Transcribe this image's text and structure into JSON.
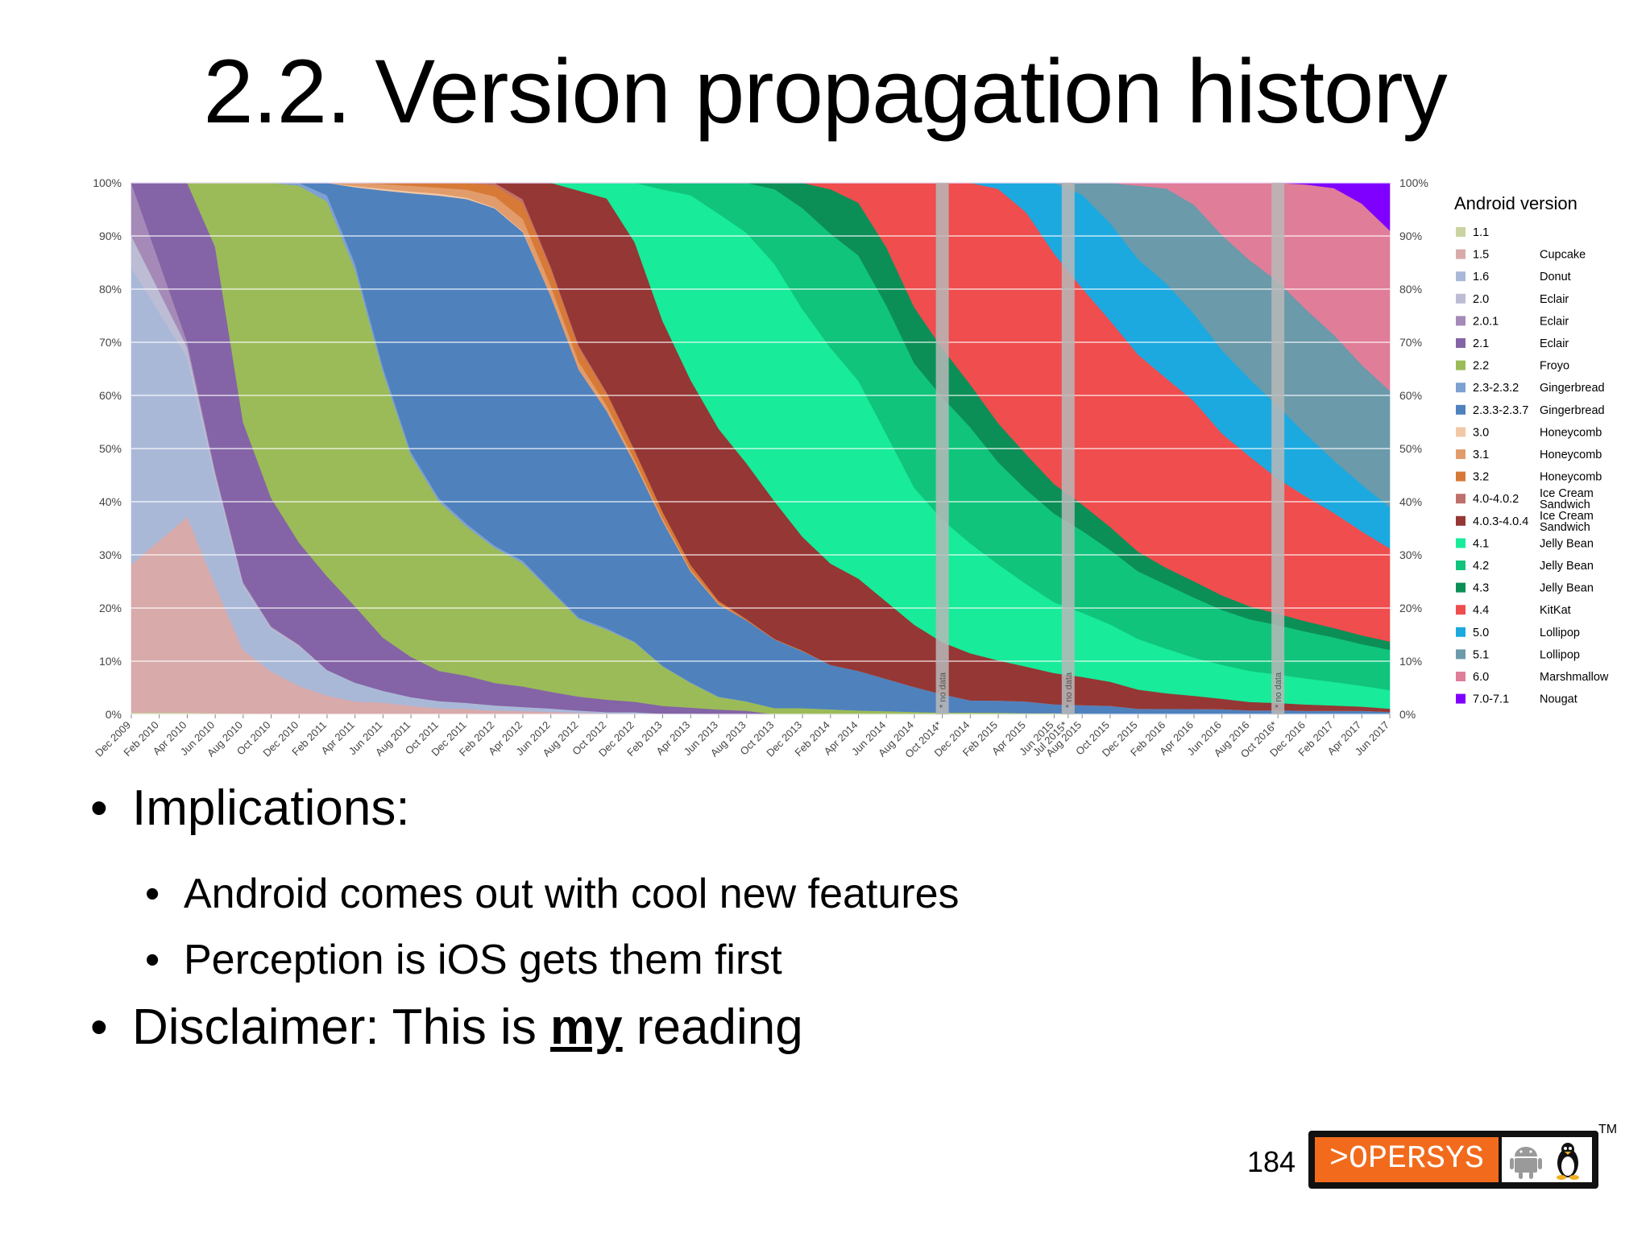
{
  "slide": {
    "title": "2.2. Version propagation history",
    "bullets": [
      {
        "level": 1,
        "text": "Implications:"
      },
      {
        "level": 2,
        "text": "Android comes out with cool new features"
      },
      {
        "level": 2,
        "text": "Perception is iOS gets them first"
      }
    ],
    "disclaimer": {
      "prefix": "Disclaimer: This is ",
      "emphasis": "my",
      "suffix": " reading"
    },
    "page_number": "184",
    "logo": {
      "text": ">OPERSYS",
      "tm": "TM",
      "icons": [
        "android-robot-icon",
        "tux-penguin-icon"
      ],
      "accent_color": "#f26b1d"
    }
  },
  "chart_data": {
    "type": "area",
    "stacked": true,
    "percent": true,
    "legend_title": "Android version",
    "legend_position": "right",
    "grid": true,
    "ylim": [
      0,
      100
    ],
    "y_ticks": [
      "0%",
      "10%",
      "20%",
      "30%",
      "40%",
      "50%",
      "60%",
      "70%",
      "80%",
      "90%",
      "100%"
    ],
    "x_ticks": [
      "Dec 2009",
      "Feb 2010",
      "Apr 2010",
      "Jun 2010",
      "Aug 2010",
      "Oct 2010",
      "Dec 2010",
      "Feb 2011",
      "Apr 2011",
      "Jun 2011",
      "Aug 2011",
      "Oct 2011",
      "Dec 2011",
      "Feb 2012",
      "Apr 2012",
      "Jun 2012",
      "Aug 2012",
      "Oct 2012",
      "Dec 2012",
      "Feb 2013",
      "Apr 2013",
      "Jun 2013",
      "Aug 2013",
      "Oct 2013",
      "Dec 2013",
      "Feb 2014",
      "Apr 2014",
      "Jun 2014",
      "Aug 2014",
      "Oct 2014*",
      "Dec 2014",
      "Feb 2015",
      "Apr 2015",
      "Jun 2015",
      "Jul 2015*",
      "Aug 2015",
      "Oct 2015",
      "Dec 2015",
      "Feb 2016",
      "Apr 2016",
      "Jun 2016",
      "Aug 2016",
      "Oct 2016*",
      "Dec 2016",
      "Feb 2017",
      "Apr 2017",
      "Jun 2017"
    ],
    "no_data_label": "* no data",
    "no_data_at": [
      "Oct 2014*",
      "Jul 2015*",
      "Oct 2016*"
    ],
    "x": [
      "Dec 2009",
      "Apr 2010",
      "Jun 2010",
      "Aug 2010",
      "Oct 2010",
      "Dec 2010",
      "Feb 2011",
      "Apr 2011",
      "Jun 2011",
      "Aug 2011",
      "Oct 2011",
      "Dec 2011",
      "Feb 2012",
      "Apr 2012",
      "Jun 2012",
      "Aug 2012",
      "Oct 2012",
      "Dec 2012",
      "Feb 2013",
      "Apr 2013",
      "Jun 2013",
      "Aug 2013",
      "Oct 2013",
      "Dec 2013",
      "Feb 2014",
      "Apr 2014",
      "Jun 2014",
      "Aug 2014",
      "Oct 2014",
      "Dec 2014",
      "Feb 2015",
      "Apr 2015",
      "Jun 2015",
      "Aug 2015",
      "Oct 2015",
      "Dec 2015",
      "Feb 2016",
      "Apr 2016",
      "Jun 2016",
      "Aug 2016",
      "Oct 2016",
      "Dec 2016",
      "Feb 2017",
      "Apr 2017",
      "Jun 2017"
    ],
    "series": [
      {
        "name": "1.1",
        "codename": "",
        "color": "#c9d4a1",
        "values": [
          0.3,
          0.3,
          0.2,
          0.1,
          0,
          0,
          0,
          0,
          0,
          0,
          0,
          0,
          0,
          0,
          0,
          0,
          0,
          0,
          0,
          0,
          0,
          0,
          0,
          0,
          0,
          0,
          0,
          0,
          0,
          0,
          0,
          0,
          0,
          0,
          0,
          0,
          0,
          0,
          0,
          0,
          0,
          0,
          0,
          0,
          0
        ]
      },
      {
        "name": "1.5",
        "codename": "Cupcake",
        "color": "#d8aaaa",
        "values": [
          28,
          37,
          24,
          12,
          8,
          5,
          3,
          2,
          2,
          1.5,
          1,
          0.8,
          0.5,
          0.4,
          0.3,
          0.2,
          0.1,
          0.1,
          0,
          0,
          0,
          0,
          0,
          0,
          0,
          0,
          0,
          0,
          0,
          0,
          0,
          0,
          0,
          0,
          0,
          0,
          0,
          0,
          0,
          0,
          0,
          0,
          0,
          0,
          0
        ]
      },
      {
        "name": "1.6",
        "codename": "Donut",
        "color": "#aab8d8",
        "values": [
          56,
          30,
          20,
          12,
          8,
          7,
          4,
          3,
          2,
          1.5,
          1.2,
          0.9,
          0.7,
          0.5,
          0.4,
          0.3,
          0.2,
          0.2,
          0.1,
          0.1,
          0,
          0,
          0,
          0,
          0,
          0,
          0,
          0,
          0,
          0,
          0,
          0,
          0,
          0,
          0,
          0,
          0,
          0,
          0,
          0,
          0,
          0,
          0,
          0,
          0
        ]
      },
      {
        "name": "2.0",
        "codename": "Eclair",
        "color": "#bcbcd4",
        "values": [
          6,
          2,
          1,
          0.5,
          0.3,
          0.2,
          0.1,
          0,
          0,
          0,
          0,
          0,
          0,
          0,
          0,
          0,
          0,
          0,
          0,
          0,
          0,
          0,
          0,
          0,
          0,
          0,
          0,
          0,
          0,
          0,
          0,
          0,
          0,
          0,
          0,
          0,
          0,
          0,
          0,
          0,
          0,
          0,
          0,
          0,
          0
        ]
      },
      {
        "name": "2.0.1",
        "codename": "Eclair",
        "color": "#a58ab8",
        "values": [
          10,
          1,
          0.5,
          0.3,
          0.2,
          0.1,
          0,
          0,
          0,
          0,
          0,
          0,
          0,
          0,
          0,
          0,
          0,
          0,
          0,
          0,
          0,
          0,
          0,
          0,
          0,
          0,
          0,
          0,
          0,
          0,
          0,
          0,
          0,
          0,
          0,
          0,
          0,
          0,
          0,
          0,
          0,
          0,
          0,
          0,
          0
        ]
      },
      {
        "name": "2.1",
        "codename": "Eclair",
        "color": "#8464a6",
        "values": [
          0,
          30,
          42,
          30,
          24,
          18,
          15,
          12,
          9,
          7,
          5,
          4,
          3,
          2.5,
          2,
          1.8,
          1.6,
          1.4,
          1.2,
          1,
          0.8,
          0.6,
          0,
          0,
          0,
          0,
          0,
          0,
          0,
          0,
          0,
          0,
          0,
          0,
          0,
          0,
          0,
          0,
          0,
          0,
          0,
          0,
          0,
          0,
          0
        ]
      },
      {
        "name": "2.2",
        "codename": "Froyo",
        "color": "#9bbb59",
        "values": [
          0,
          0,
          12,
          45,
          59,
          63,
          60,
          53,
          45,
          35,
          28,
          22,
          18,
          15,
          12,
          10,
          9,
          8,
          6,
          4,
          2,
          1.5,
          1,
          1,
          0.8,
          0.6,
          0.5,
          0.4,
          0.3,
          0.3,
          0.3,
          0.2,
          0.2,
          0.1,
          0,
          0,
          0,
          0,
          0,
          0,
          0,
          0,
          0,
          0,
          0
        ]
      },
      {
        "name": "2.3-2.3.2",
        "codename": "Gingerbread",
        "color": "#7ea1d2",
        "values": [
          0,
          0,
          0,
          0,
          0,
          0.5,
          1,
          1,
          0.8,
          0.6,
          0.5,
          0.4,
          0.3,
          0.3,
          0.2,
          0.2,
          0.2,
          0.1,
          0.1,
          0.1,
          0.1,
          0,
          0,
          0,
          0,
          0,
          0,
          0,
          0,
          0,
          0,
          0,
          0,
          0,
          0,
          0,
          0,
          0,
          0,
          0,
          0,
          0,
          0,
          0,
          0
        ]
      },
      {
        "name": "2.3.3-2.3.7",
        "codename": "Gingerbread",
        "color": "#4f81bd",
        "values": [
          0,
          0,
          0,
          0,
          0,
          0,
          2,
          12,
          30,
          45,
          50,
          48,
          45,
          40,
          35,
          32,
          28,
          24,
          22,
          18,
          15,
          13,
          11,
          9,
          7,
          6,
          5,
          4,
          3,
          2,
          2,
          2,
          1.5,
          1.5,
          1.5,
          1,
          1,
          1,
          1,
          0.8,
          0.8,
          0.7,
          0.7,
          0.7,
          0.5
        ]
      },
      {
        "name": "3.0",
        "codename": "Honeycomb",
        "color": "#f2c7a6",
        "values": [
          0,
          0,
          0,
          0,
          0,
          0,
          0,
          0.2,
          0.3,
          0.3,
          0.3,
          0.2,
          0.1,
          0.1,
          0,
          0,
          0,
          0,
          0,
          0,
          0,
          0,
          0,
          0,
          0,
          0,
          0,
          0,
          0,
          0,
          0,
          0,
          0,
          0,
          0,
          0,
          0,
          0,
          0,
          0,
          0,
          0,
          0,
          0,
          0
        ]
      },
      {
        "name": "3.1",
        "codename": "Honeycomb",
        "color": "#e29c6b",
        "values": [
          0,
          0,
          0,
          0,
          0,
          0,
          0,
          0.5,
          0.8,
          1,
          1,
          1.2,
          1.5,
          1.5,
          1.2,
          1,
          0.7,
          0.5,
          0.4,
          0.3,
          0.2,
          0,
          0,
          0,
          0,
          0,
          0,
          0,
          0,
          0,
          0,
          0,
          0,
          0,
          0,
          0,
          0,
          0,
          0,
          0,
          0,
          0,
          0,
          0,
          0
        ]
      },
      {
        "name": "3.2",
        "codename": "Honeycomb",
        "color": "#d77a38",
        "values": [
          0,
          0,
          0,
          0,
          0,
          0,
          0,
          0,
          0.2,
          0.5,
          0.8,
          1,
          1.5,
          2,
          2,
          1.8,
          1.5,
          1.2,
          1,
          0.8,
          0.4,
          0.2,
          0.1,
          0.1,
          0,
          0,
          0,
          0,
          0,
          0,
          0,
          0,
          0,
          0,
          0,
          0,
          0,
          0,
          0,
          0,
          0,
          0,
          0,
          0,
          0
        ]
      },
      {
        "name": "4.0-4.0.2",
        "codename": "Ice Cream Sandwich",
        "color": "#c0706c",
        "values": [
          0,
          0,
          0,
          0,
          0,
          0,
          0,
          0,
          0,
          0,
          0,
          0,
          0.3,
          0.4,
          0.3,
          0.3,
          0.2,
          0.1,
          0,
          0,
          0,
          0,
          0,
          0,
          0,
          0,
          0,
          0,
          0,
          0,
          0,
          0,
          0,
          0,
          0,
          0,
          0,
          0,
          0,
          0,
          0,
          0,
          0,
          0,
          0
        ]
      },
      {
        "name": "4.0.3-4.0.4",
        "codename": "Ice Cream Sandwich",
        "color": "#953735",
        "values": [
          0,
          0,
          0,
          0,
          0,
          0,
          0,
          0,
          0,
          0,
          0,
          0,
          0,
          2,
          10,
          20,
          25,
          28,
          29,
          30,
          28,
          25,
          22,
          18,
          16,
          14,
          12,
          10,
          8.5,
          7.7,
          6.7,
          5.9,
          5.3,
          4.8,
          4.2,
          3.4,
          2.8,
          2.4,
          2.0,
          1.6,
          1.4,
          1.2,
          1.0,
          0.8,
          0.6
        ]
      },
      {
        "name": "4.1",
        "codename": "Jelly Bean",
        "color": "#18eb9a",
        "values": [
          0,
          0,
          0,
          0,
          0,
          0,
          0,
          0,
          0,
          0,
          0,
          0,
          0,
          0,
          0,
          1,
          2,
          8,
          20,
          30,
          35,
          37,
          38,
          36,
          34,
          30,
          26,
          22,
          20,
          18,
          16,
          14,
          12,
          11,
          10,
          9,
          8,
          7,
          6.5,
          6,
          5.5,
          5,
          4.5,
          4,
          3.6
        ]
      },
      {
        "name": "4.2",
        "codename": "Jelly Bean",
        "color": "#10c47c",
        "values": [
          0,
          0,
          0,
          0,
          0,
          0,
          0,
          0,
          0,
          0,
          0,
          0,
          0,
          0,
          0,
          0,
          0,
          0,
          1,
          2,
          5,
          8,
          12,
          16,
          18,
          19,
          20,
          20,
          20,
          19,
          17,
          16,
          15,
          14,
          13,
          12,
          11.5,
          11,
          10.5,
          10,
          9.5,
          9,
          8.5,
          8,
          7.8
        ]
      },
      {
        "name": "4.3",
        "codename": "Jelly Bean",
        "color": "#0c8f57",
        "values": [
          0,
          0,
          0,
          0,
          0,
          0,
          0,
          0,
          0,
          0,
          0,
          0,
          0,
          0,
          0,
          0,
          0,
          0,
          0,
          0,
          0,
          0,
          1,
          4,
          7,
          8,
          9,
          9,
          8,
          7,
          6.5,
          6,
          5,
          4.5,
          4,
          3.5,
          3,
          3,
          2.8,
          2.5,
          2.2,
          2,
          1.8,
          1.7,
          1.6
        ]
      },
      {
        "name": "4.4",
        "codename": "KitKat",
        "color": "#ef4d4e",
        "values": [
          0,
          0,
          0,
          0,
          0,
          0,
          0,
          0,
          0,
          0,
          0,
          0,
          0,
          0,
          0,
          0,
          0,
          0,
          0,
          0,
          0,
          0,
          0,
          0,
          1,
          3,
          10,
          20,
          27,
          33,
          39,
          41,
          39,
          37,
          36,
          35,
          34,
          33,
          31,
          29,
          26,
          24,
          22,
          20,
          18
        ]
      },
      {
        "name": "5.0",
        "codename": "Lollipop",
        "color": "#1ca9e0",
        "values": [
          0,
          0,
          0,
          0,
          0,
          0,
          0,
          0,
          0,
          0,
          0,
          0,
          0,
          0,
          0,
          0,
          0,
          0,
          0,
          0,
          0,
          0,
          0,
          0,
          0,
          0,
          0,
          0,
          0,
          0,
          1,
          5,
          12,
          16,
          17,
          17,
          17,
          16,
          16,
          15,
          14,
          12,
          10,
          9,
          8
        ]
      },
      {
        "name": "5.1",
        "codename": "Lollipop",
        "color": "#6b9aaa",
        "values": [
          0,
          0,
          0,
          0,
          0,
          0,
          0,
          0,
          0,
          0,
          0,
          0,
          0,
          0,
          0,
          0,
          0,
          0,
          0,
          0,
          0,
          0,
          0,
          0,
          0,
          0,
          0,
          0,
          0,
          0,
          0,
          0,
          0,
          2,
          7,
          13,
          17,
          20,
          22,
          23,
          24,
          24,
          24,
          23,
          22.5
        ]
      },
      {
        "name": "6.0",
        "codename": "Marshmallow",
        "color": "#e07d99",
        "values": [
          0,
          0,
          0,
          0,
          0,
          0,
          0,
          0,
          0,
          0,
          0,
          0,
          0,
          0,
          0,
          0,
          0,
          0,
          0,
          0,
          0,
          0,
          0,
          0,
          0,
          0,
          0,
          0,
          0,
          0,
          0,
          0,
          0,
          0,
          0,
          0.5,
          1,
          4,
          10,
          15,
          19,
          24,
          28,
          31,
          31
        ]
      },
      {
        "name": "7.0-7.1",
        "codename": "Nougat",
        "color": "#7f00ff",
        "values": [
          0,
          0,
          0,
          0,
          0,
          0,
          0,
          0,
          0,
          0,
          0,
          0,
          0,
          0,
          0,
          0,
          0,
          0,
          0,
          0,
          0,
          0,
          0,
          0,
          0,
          0,
          0,
          0,
          0,
          0,
          0,
          0,
          0,
          0,
          0,
          0,
          0,
          0,
          0,
          0,
          0,
          0.3,
          1,
          4,
          9.2
        ]
      }
    ]
  }
}
